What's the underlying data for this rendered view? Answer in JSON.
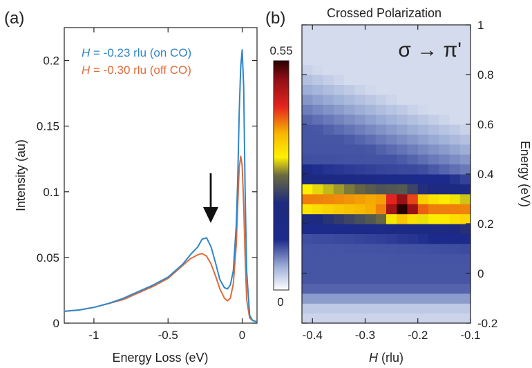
{
  "chart_data": [
    {
      "panel_label": "(a)",
      "type": "line",
      "xlabel": "Energy Loss (eV)",
      "ylabel": "Intensity (au)",
      "xlim": [
        -1.2,
        0.1
      ],
      "ylim": [
        0,
        0.225
      ],
      "xticks": [
        -1,
        -0.5,
        0
      ],
      "yticks": [
        0,
        0.05,
        0.1,
        0.15,
        0.2
      ],
      "xtick_labels": [
        "-1",
        "-0.5",
        "0"
      ],
      "ytick_labels": [
        "0",
        "0.05",
        "0.1",
        "0.15",
        "0.2"
      ],
      "series": [
        {
          "name_var": "H",
          "name_rest": " = -0.23 rlu (on CO)",
          "color": "#2f86c8",
          "x": [
            -1.2,
            -1.1,
            -1.0,
            -0.9,
            -0.8,
            -0.7,
            -0.6,
            -0.5,
            -0.45,
            -0.4,
            -0.35,
            -0.3,
            -0.27,
            -0.24,
            -0.21,
            -0.18,
            -0.15,
            -0.12,
            -0.1,
            -0.08,
            -0.06,
            -0.04,
            -0.03,
            -0.02,
            -0.01,
            0.0,
            0.01,
            0.02,
            0.03,
            0.05,
            0.07,
            0.1
          ],
          "y": [
            0.009,
            0.01,
            0.012,
            0.015,
            0.019,
            0.024,
            0.029,
            0.035,
            0.04,
            0.045,
            0.052,
            0.058,
            0.064,
            0.065,
            0.058,
            0.046,
            0.033,
            0.027,
            0.026,
            0.029,
            0.04,
            0.075,
            0.11,
            0.16,
            0.195,
            0.208,
            0.18,
            0.1,
            0.04,
            0.006,
            0.002,
            0.001
          ]
        },
        {
          "name_var": "H",
          "name_rest": " = -0.30 rlu (off CO)",
          "color": "#e26a3a",
          "x": [
            -1.2,
            -1.1,
            -1.0,
            -0.9,
            -0.8,
            -0.7,
            -0.6,
            -0.5,
            -0.45,
            -0.4,
            -0.35,
            -0.3,
            -0.27,
            -0.24,
            -0.21,
            -0.18,
            -0.15,
            -0.12,
            -0.1,
            -0.08,
            -0.06,
            -0.04,
            -0.03,
            -0.02,
            -0.01,
            0.0,
            0.01,
            0.02,
            0.03,
            0.05,
            0.07,
            0.1
          ],
          "y": [
            0.009,
            0.01,
            0.012,
            0.015,
            0.018,
            0.023,
            0.028,
            0.034,
            0.039,
            0.044,
            0.049,
            0.052,
            0.053,
            0.051,
            0.045,
            0.036,
            0.026,
            0.019,
            0.017,
            0.019,
            0.03,
            0.06,
            0.09,
            0.118,
            0.127,
            0.12,
            0.09,
            0.05,
            0.018,
            0.004,
            0.002,
            0.001
          ]
        }
      ],
      "annotation": "arrow at Energy Loss ≈ -0.23 eV"
    },
    {
      "panel_label": "(b)",
      "type": "heatmap",
      "title": "Crossed Polarization",
      "annotation_text": "σ → π'",
      "xlabel_var": "H",
      "xlabel_rest": " (rlu)",
      "ylabel": "Energy (eV)",
      "xlim": [
        -0.42,
        -0.1
      ],
      "ylim": [
        -0.2,
        1.0
      ],
      "xticks": [
        -0.4,
        -0.3,
        -0.2,
        -0.1
      ],
      "yticks": [
        -0.2,
        0,
        0.2,
        0.4,
        0.6,
        0.8,
        1.0
      ],
      "xtick_labels": [
        "-0.4",
        "-0.3",
        "-0.2",
        "-0.1"
      ],
      "ytick_labels": [
        "-0.2",
        "0",
        "0.2",
        "0.4",
        "0.6",
        "0.8",
        "1"
      ],
      "colorbar": {
        "min": 0,
        "max": 0.55,
        "min_label": "0",
        "max_label": "0.55"
      },
      "x": [
        -0.41,
        -0.39,
        -0.37,
        -0.35,
        -0.33,
        -0.31,
        -0.29,
        -0.27,
        -0.25,
        -0.23,
        -0.21,
        -0.19,
        -0.17,
        -0.15,
        -0.13,
        -0.11
      ],
      "y": [
        -0.18,
        -0.14,
        -0.1,
        -0.06,
        -0.02,
        0.02,
        0.06,
        0.1,
        0.14,
        0.18,
        0.22,
        0.26,
        0.3,
        0.34,
        0.38,
        0.42,
        0.46,
        0.5,
        0.54,
        0.58,
        0.62,
        0.66,
        0.7,
        0.74,
        0.78,
        0.82,
        0.86,
        0.9,
        0.94,
        0.98
      ],
      "z_model": {
        "ridge_center_at_h_-0.42": 0.3,
        "ridge_slope_per_rlu": -0.15,
        "ridge_width_eV": 0.075,
        "ridge_amplitude": 0.3,
        "peak": {
          "h": -0.23,
          "energy": 0.27,
          "value": 0.5
        },
        "elastic": {
          "energy": 0.0,
          "width_eV": 0.05,
          "amplitude": 0.1
        },
        "high_energy_ramp": {
          "start_eV": 0.55,
          "max": 0.05
        },
        "dip": {
          "energy": 0.18,
          "width_eV": 0.1,
          "value": 0.02
        }
      }
    }
  ]
}
